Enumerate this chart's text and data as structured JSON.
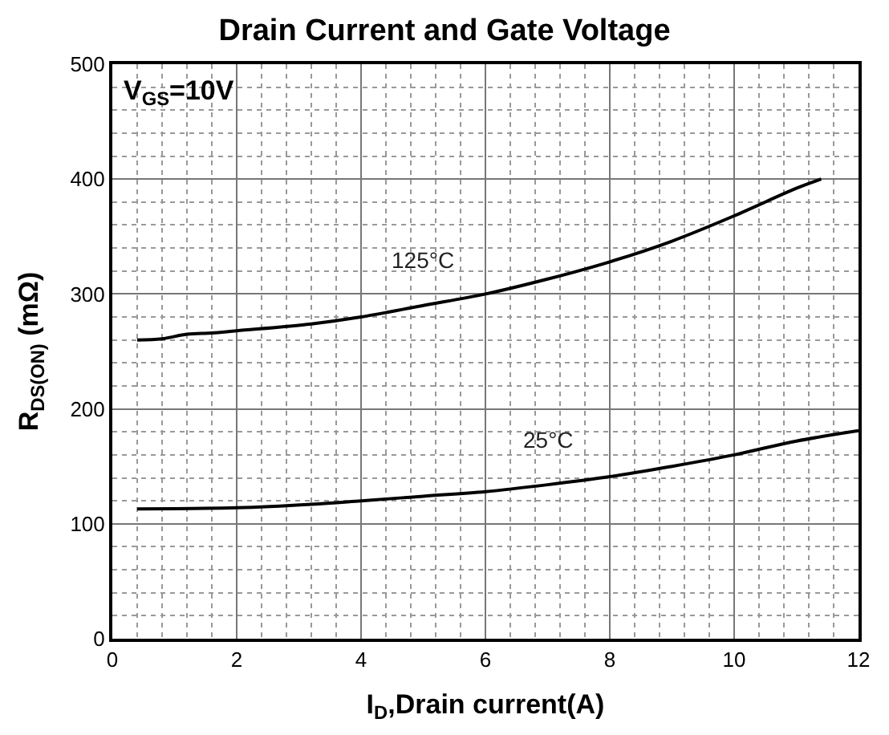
{
  "chart_data": {
    "type": "line",
    "title": "Drain Current and Gate Voltage",
    "xlabel": "I$_{D}$,Drain current(A)",
    "ylabel": "R$_{DS(ON)}$ (mΩ)",
    "annotations": [
      "V$_{GS}$=10V"
    ],
    "series": [
      {
        "name": "125°C",
        "color": "#000000",
        "x": [
          0.4,
          0.8,
          1.2,
          1.6,
          2,
          3.2,
          4,
          5,
          6,
          7,
          8,
          9,
          10,
          11,
          11.4
        ],
        "values": [
          260,
          261,
          265,
          266,
          268,
          274,
          280,
          290,
          300,
          313,
          328,
          346,
          368,
          392,
          400
        ]
      },
      {
        "name": "25°C",
        "color": "#000000",
        "x": [
          0.4,
          2,
          3.2,
          4,
          5,
          6,
          7,
          8,
          9,
          10,
          11,
          12
        ],
        "values": [
          113,
          114,
          117,
          120,
          124,
          128,
          134,
          141,
          150,
          160,
          172,
          181
        ]
      }
    ],
    "xlim": [
      0,
      12
    ],
    "xticks": [
      0,
      2,
      4,
      6,
      8,
      10,
      12
    ],
    "ylim": [
      0,
      500
    ],
    "yticks": [
      0,
      100,
      200,
      300,
      400,
      500
    ],
    "grid": true,
    "legend": false,
    "marker": "none",
    "line_style": "solid"
  }
}
